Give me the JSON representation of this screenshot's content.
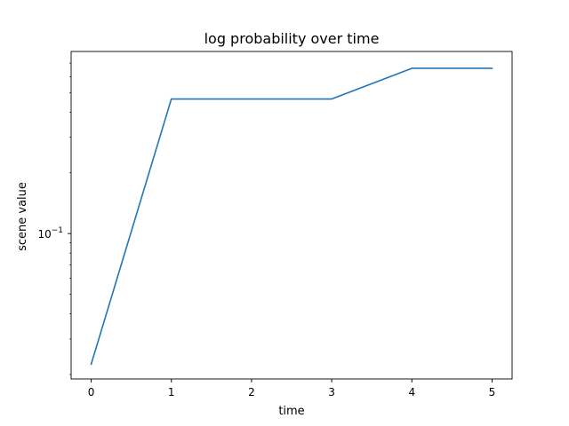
{
  "chart_data": {
    "type": "line",
    "title": "log probability over time",
    "xlabel": "time",
    "ylabel": "scene value",
    "x": [
      0,
      1,
      2,
      3,
      4,
      5
    ],
    "series": [
      {
        "values": [
          0.0225,
          0.465,
          0.465,
          0.465,
          0.66,
          0.66
        ],
        "color": "#1f77b4"
      }
    ],
    "xlim": [
      -0.25,
      5.25
    ],
    "ylim": [
      0.019,
      0.8
    ],
    "yscale": "log",
    "x_ticks": [
      "0",
      "1",
      "2",
      "3",
      "4",
      "5"
    ],
    "y_tick_values": [
      0.1
    ],
    "y_tick_labels": [
      {
        "base": "10",
        "exp": "−1"
      }
    ],
    "grid": false,
    "legend": "none"
  }
}
